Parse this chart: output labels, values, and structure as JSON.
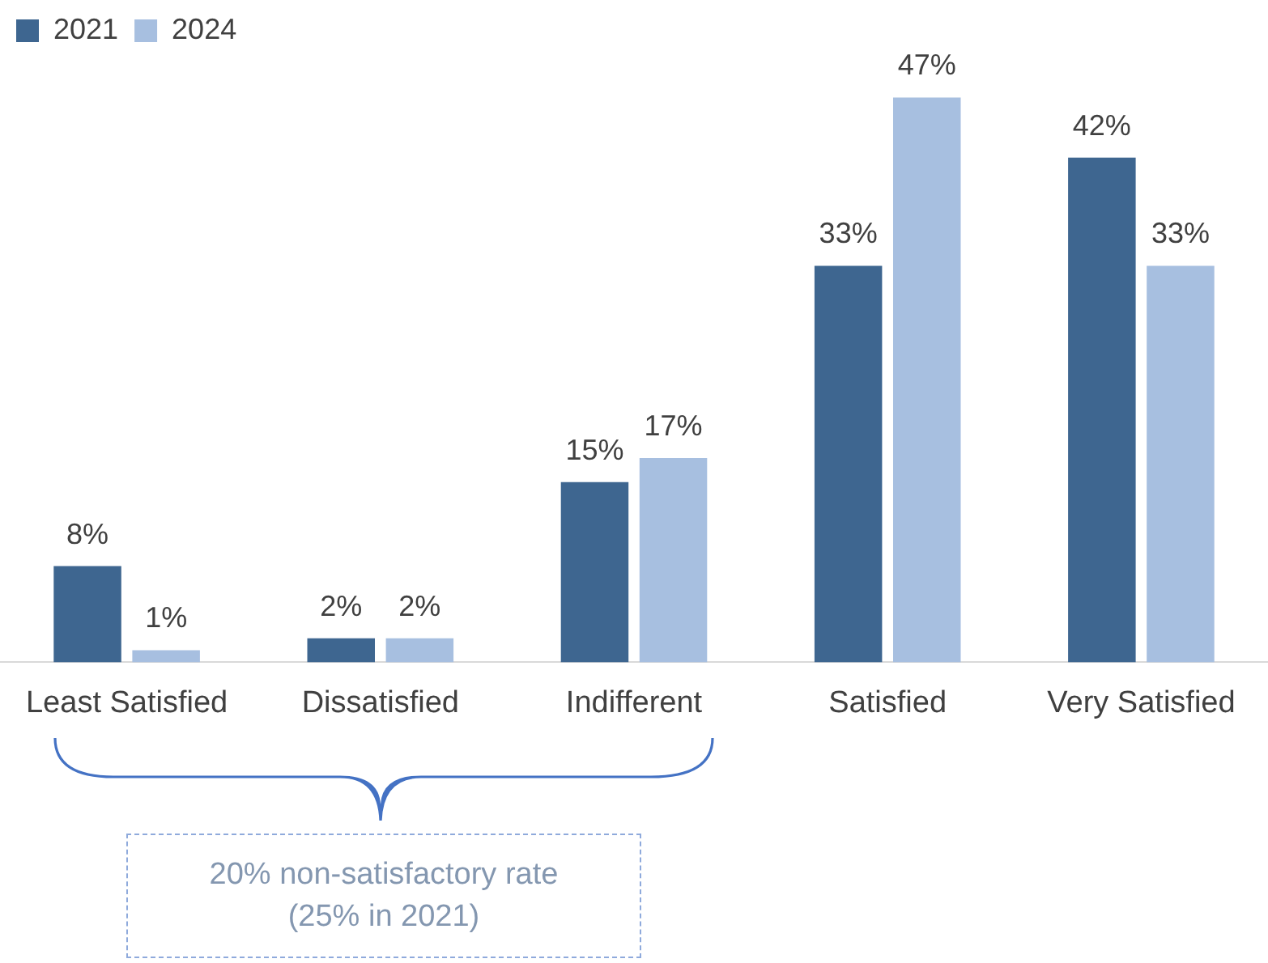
{
  "chart_data": {
    "type": "bar",
    "categories": [
      "Least Satisfied",
      "Dissatisfied",
      "Indifferent",
      "Satisfied",
      "Very Satisfied"
    ],
    "series": [
      {
        "name": "2021",
        "color": "#3e6690",
        "values": [
          8,
          2,
          15,
          33,
          42
        ],
        "value_labels": [
          "8%",
          "2%",
          "15%",
          "33%",
          "42%"
        ]
      },
      {
        "name": "2024",
        "color": "#a7bfe0",
        "values": [
          1,
          2,
          17,
          47,
          33
        ],
        "value_labels": [
          "1%",
          "2%",
          "17%",
          "47%",
          "33%"
        ]
      }
    ],
    "legend": "top left",
    "grid": false,
    "annotations": [
      "20% non-satisfactory rate\n(25% in 2021)"
    ]
  }
}
